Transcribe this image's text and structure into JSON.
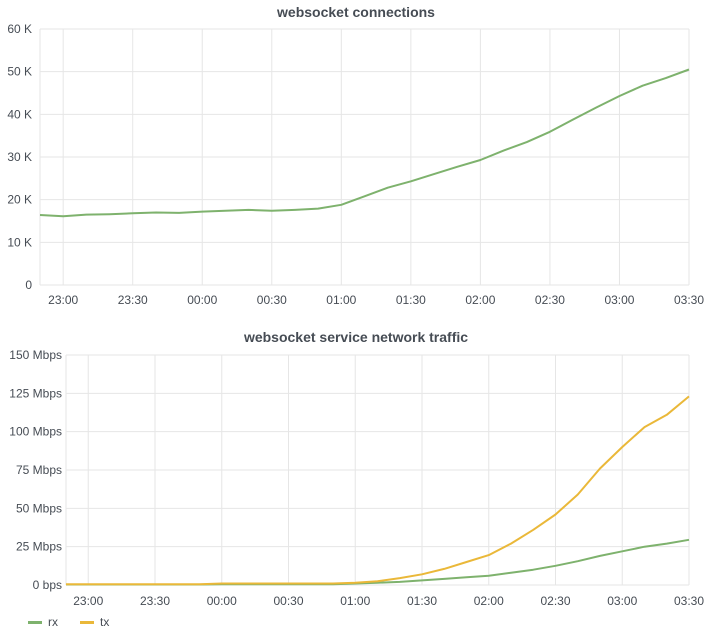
{
  "chart_data": [
    {
      "type": "line",
      "title": "websocket connections",
      "xlabel": "",
      "ylabel": "",
      "ylim": [
        0,
        60000
      ],
      "ytick_labels": [
        "0",
        "10 K",
        "20 K",
        "30 K",
        "40 K",
        "50 K",
        "60 K"
      ],
      "ytick_values": [
        0,
        10000,
        20000,
        30000,
        40000,
        50000,
        60000
      ],
      "xtick_labels": [
        "23:00",
        "23:30",
        "00:00",
        "00:30",
        "01:00",
        "01:30",
        "02:00",
        "02:30",
        "03:00",
        "03:30"
      ],
      "x_range_minutes": [
        -70,
        210
      ],
      "xtick_minutes": [
        -60,
        -30,
        0,
        30,
        60,
        90,
        120,
        150,
        180,
        210
      ],
      "series": [
        {
          "name": "connections",
          "color": "#7eb26d",
          "x": [
            -70,
            -60,
            -50,
            -40,
            -30,
            -20,
            -10,
            0,
            10,
            20,
            30,
            40,
            50,
            60,
            70,
            80,
            90,
            100,
            110,
            120,
            130,
            140,
            150,
            160,
            170,
            180,
            190,
            200,
            210
          ],
          "values": [
            16400,
            16100,
            16500,
            16600,
            16800,
            17000,
            16900,
            17200,
            17400,
            17600,
            17400,
            17600,
            17900,
            18800,
            20800,
            22800,
            24300,
            26000,
            27700,
            29300,
            31500,
            33500,
            35900,
            38800,
            41600,
            44300,
            46700,
            48500,
            50500
          ]
        }
      ]
    },
    {
      "type": "line",
      "title": "websocket service network traffic",
      "xlabel": "",
      "ylabel": "",
      "ylim": [
        0,
        150
      ],
      "ytick_labels": [
        "0 bps",
        "25 Mbps",
        "50 Mbps",
        "75 Mbps",
        "100 Mbps",
        "125 Mbps",
        "150 Mbps"
      ],
      "ytick_values": [
        0,
        25,
        50,
        75,
        100,
        125,
        150
      ],
      "xtick_labels": [
        "23:00",
        "23:30",
        "00:00",
        "00:30",
        "01:00",
        "01:30",
        "02:00",
        "02:30",
        "03:00",
        "03:30"
      ],
      "x_range_minutes": [
        -70,
        210
      ],
      "xtick_minutes": [
        -60,
        -30,
        0,
        30,
        60,
        90,
        120,
        150,
        180,
        210
      ],
      "legend_position": "bottom-left",
      "series": [
        {
          "name": "rx",
          "color": "#7eb26d",
          "x": [
            -70,
            -50,
            -30,
            -10,
            0,
            10,
            20,
            30,
            40,
            50,
            60,
            70,
            80,
            90,
            100,
            110,
            120,
            130,
            140,
            150,
            160,
            170,
            180,
            190,
            200,
            210
          ],
          "values": [
            0.3,
            0.3,
            0.3,
            0.3,
            0.5,
            0.5,
            0.5,
            0.5,
            0.5,
            0.5,
            1.0,
            1.5,
            2.0,
            3.0,
            4.0,
            5.0,
            6.0,
            8.0,
            10.0,
            12.5,
            15.5,
            19.0,
            22.0,
            25.0,
            27.0,
            29.5
          ]
        },
        {
          "name": "tx",
          "color": "#eab839",
          "x": [
            -70,
            -50,
            -30,
            -10,
            0,
            10,
            20,
            30,
            40,
            50,
            60,
            70,
            80,
            90,
            100,
            110,
            120,
            130,
            140,
            150,
            160,
            170,
            180,
            190,
            200,
            210
          ],
          "values": [
            0.5,
            0.5,
            0.5,
            0.5,
            1.0,
            1.0,
            1.0,
            1.0,
            1.0,
            1.0,
            1.5,
            2.5,
            4.5,
            7.0,
            10.5,
            15.0,
            19.5,
            27.0,
            36.0,
            46.0,
            59.0,
            76.0,
            90.0,
            103.0,
            111.0,
            123.0
          ]
        }
      ]
    }
  ]
}
